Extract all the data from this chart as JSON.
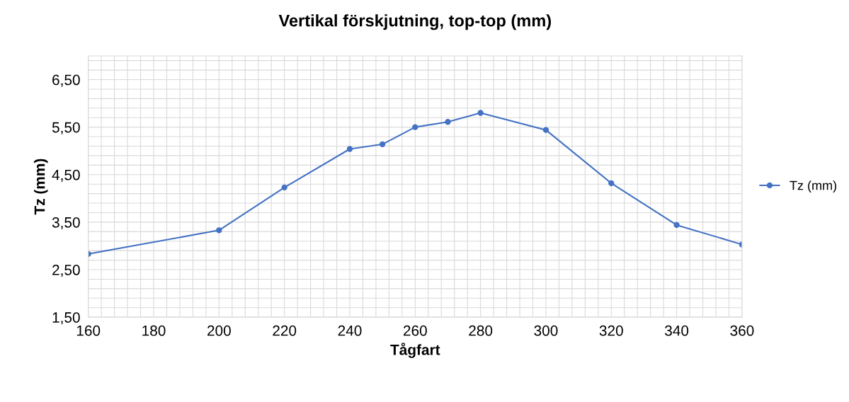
{
  "chart_data": {
    "type": "line",
    "title": "Vertikal förskjutning, top-top (mm)",
    "xlabel": "Tågfart",
    "ylabel": "Tz (mm)",
    "x": [
      160,
      200,
      220,
      240,
      250,
      260,
      270,
      280,
      300,
      320,
      340,
      360
    ],
    "series": [
      {
        "name": "Tz (mm)",
        "color": "#4472c4",
        "values": [
          2.83,
          3.33,
          4.23,
          5.04,
          5.14,
          5.5,
          5.61,
          5.8,
          5.44,
          4.32,
          3.44,
          3.03
        ]
      }
    ],
    "xlim": [
      160,
      360
    ],
    "xticks": [
      160,
      180,
      200,
      220,
      240,
      260,
      280,
      300,
      320,
      340,
      360
    ],
    "ylim": [
      1.5,
      7.0
    ],
    "yticks": [
      {
        "value": 1.5,
        "label": "1,50"
      },
      {
        "value": 2.5,
        "label": "2,50"
      },
      {
        "value": 3.5,
        "label": "3,50"
      },
      {
        "value": 4.5,
        "label": "4,50"
      },
      {
        "value": 5.5,
        "label": "5,50"
      },
      {
        "value": 6.5,
        "label": "6,50"
      }
    ],
    "grid": true,
    "legend": "right",
    "marker": "circle",
    "line_style": "solid"
  }
}
